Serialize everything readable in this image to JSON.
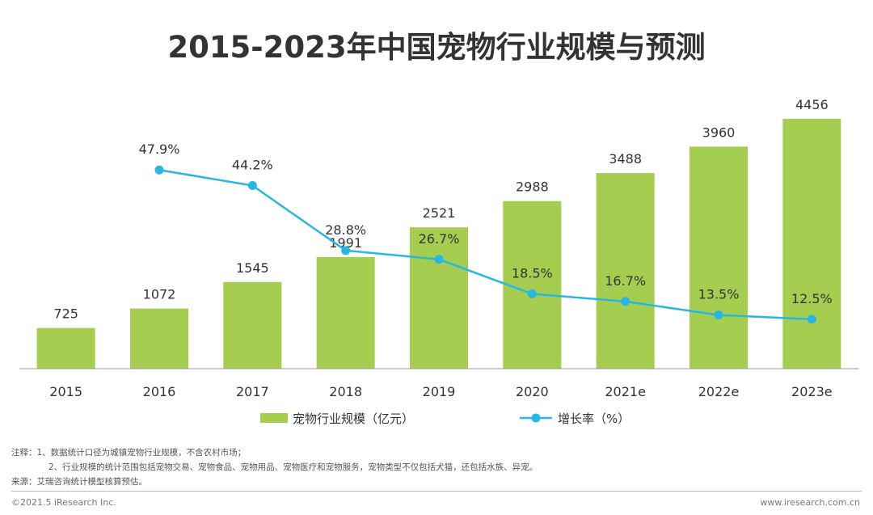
{
  "title": "2015-2023年中国宠物行业规模与预测",
  "chart_data": {
    "type": "bar",
    "title": "2015-2023年中国宠物行业规模与预测",
    "categories": [
      "2015",
      "2016",
      "2017",
      "2018",
      "2019",
      "2020",
      "2021e",
      "2022e",
      "2023e"
    ],
    "series": [
      {
        "name": "宠物行业规模（亿元）",
        "type": "bar",
        "values": [
          725,
          1072,
          1545,
          1991,
          2521,
          2988,
          3488,
          3960,
          4456
        ],
        "labels": [
          "725",
          "1072",
          "1545",
          "1991",
          "2521",
          "2988",
          "3488",
          "3960",
          "4456"
        ]
      },
      {
        "name": "增长率（%）",
        "type": "line",
        "values": [
          null,
          47.9,
          44.2,
          28.8,
          26.7,
          18.5,
          16.7,
          13.5,
          12.5
        ],
        "labels": [
          "",
          "47.9%",
          "44.2%",
          "28.8%",
          "26.7%",
          "18.5%",
          "16.7%",
          "13.5%",
          "12.5%"
        ]
      }
    ],
    "ylim_bar": [
      0,
      4700
    ],
    "ylim_line": [
      0,
      70
    ],
    "legend": "bottom-center",
    "grid": false
  },
  "colors": {
    "bar": "#a5cd4f",
    "line": "#26b8e3",
    "text": "#333333"
  },
  "notes": {
    "line1": "注释：1、数据统计口径为城镇宠物行业规模，不含农村市场；",
    "line2": "2、行业规模的统计范围包括宠物交易、宠物食品、宠物用品、宠物医疗和宠物服务，宠物类型不仅包括犬猫，还包括水族、异宠。",
    "line3": "来源：艾瑞咨询统计模型核算预估。"
  },
  "footer": {
    "left": "©2021.5 iResearch Inc.",
    "right": "www.iresearch.com.cn"
  }
}
